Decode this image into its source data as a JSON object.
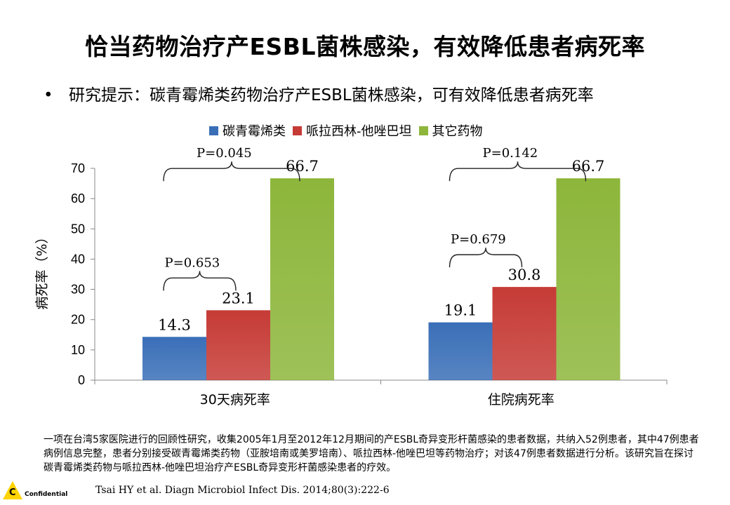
{
  "title": "恰当药物治疗产ESBL菌株感染，有效降低患者病死率",
  "bullet": "研究提示：碳青霉烯类药物治疗产ESBL菌株感染，可有效降低患者病死率",
  "bullet_marker": "•",
  "footnote": "一项在台湾5家医院进行的回顾性研究，收集2005年1月至2012年12月期间的产ESBL奇异变形杆菌感染的患者数据，共纳入52例患者，其中47例患者病例信息完整，患者分别接受碳青霉烯类药物（亚胺培南或美罗培南）、哌拉西林-他唑巴坦等药物治疗；对该47例患者数据进行分析。该研究旨在探讨碳青霉烯类药物与哌拉西林-他唑巴坦治疗产ESBL奇异变形杆菌感染患者的疗效。",
  "citation": "Tsai HY et al. Diagn Microbiol Infect Dis. 2014;80(3):222-6",
  "logo": {
    "letter": "C",
    "text": "Confidential",
    "color": "#ffd400"
  },
  "chart_data": {
    "type": "bar",
    "categories": [
      "30天病死率",
      "住院病死率"
    ],
    "series": [
      {
        "name": "碳青霉烯类",
        "values": [
          14.3,
          19.1
        ],
        "color": "#3a6fb8"
      },
      {
        "name": "哌拉西林-他唑巴坦",
        "values": [
          23.1,
          30.8
        ],
        "color": "#c63b36"
      },
      {
        "name": "其它药物",
        "values": [
          66.7,
          66.7
        ],
        "color": "#8db63b"
      }
    ],
    "data_labels": [
      [
        "14.3",
        "23.1",
        "66.7"
      ],
      [
        "19.1",
        "30.8",
        "66.7"
      ]
    ],
    "ylabel": "病死率（%）",
    "xlabel": "",
    "ylim": [
      0,
      70
    ],
    "yticks": [
      0,
      10,
      20,
      30,
      40,
      50,
      60,
      70
    ],
    "legend_position": "top",
    "annotations": [
      {
        "category": 0,
        "from_series": 0,
        "to_series": 1,
        "text": "P=0.653"
      },
      {
        "category": 0,
        "from_series": 0,
        "to_series": 2,
        "text": "P=0.045"
      },
      {
        "category": 1,
        "from_series": 0,
        "to_series": 1,
        "text": "P=0.679"
      },
      {
        "category": 1,
        "from_series": 0,
        "to_series": 2,
        "text": "P=0.142"
      }
    ]
  }
}
